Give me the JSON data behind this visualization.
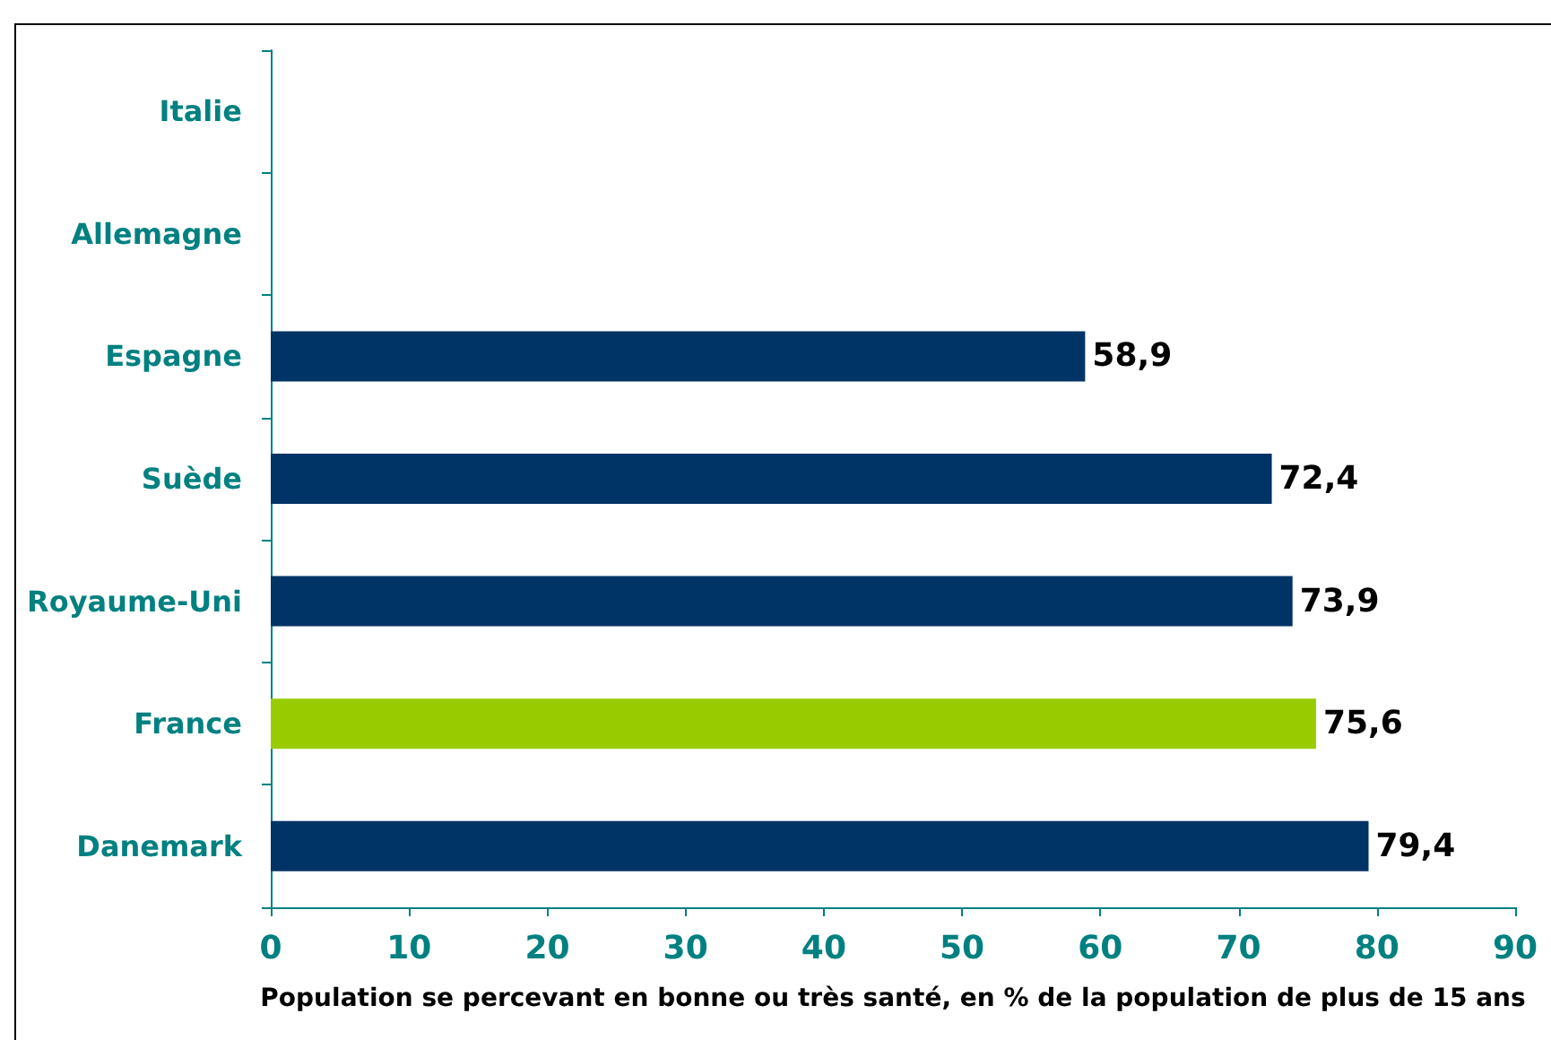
{
  "chart_data": {
    "type": "bar",
    "orientation": "horizontal",
    "xlabel": "Population se percevant en bonne ou très santé, en % de la population de plus de 15 ans",
    "categories": [
      "Italie",
      "Allemagne",
      "Espagne",
      "Suède",
      "Royaume-Uni",
      "France",
      "Danemark"
    ],
    "values": [
      null,
      null,
      58.9,
      72.4,
      73.9,
      75.6,
      79.4
    ],
    "colors": [
      "#003366",
      "#003366",
      "#003366",
      "#003366",
      "#003366",
      "#99cc00",
      "#003366"
    ],
    "value_labels": [
      null,
      null,
      "58,9",
      "72,4",
      "73,9",
      "75,6",
      "79,4"
    ],
    "xlim": [
      0,
      90
    ],
    "xticks": [
      0,
      10,
      20,
      30,
      40,
      50,
      60,
      70,
      80,
      90
    ],
    "grid": false
  }
}
